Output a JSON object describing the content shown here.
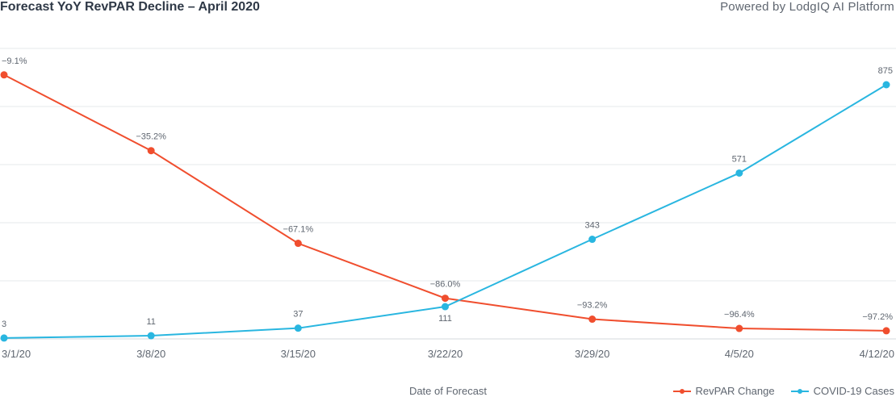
{
  "header": {
    "title": "Forecast YoY RevPAR Decline – April 2020",
    "powered_by": "Powered by LodgIQ AI Platform"
  },
  "chart_data": {
    "type": "line",
    "title": "Forecast YoY RevPAR Decline – April 2020",
    "xlabel": "Date of Forecast",
    "ylabel": "",
    "categories": [
      "3/1/20",
      "3/8/20",
      "3/15/20",
      "3/22/20",
      "3/29/20",
      "4/5/20",
      "4/12/20"
    ],
    "series": [
      {
        "name": "RevPAR Change",
        "color": "#f04e2e",
        "values": [
          -9.1,
          -35.2,
          -67.1,
          -86.0,
          -93.2,
          -96.4,
          -97.2
        ],
        "labels": [
          "−9.1%",
          "−35.2%",
          "−67.1%",
          "−86.0%",
          "−93.2%",
          "−96.4%",
          "−97.2%"
        ],
        "ylim": [
          -100,
          0
        ]
      },
      {
        "name": "COVID-19 Cases",
        "color": "#29b6e0",
        "values": [
          3,
          11,
          37,
          111,
          343,
          571,
          875
        ],
        "labels": [
          "3",
          "11",
          "37",
          "111",
          "343",
          "571",
          "875"
        ],
        "ylim": [
          0,
          1000
        ]
      }
    ],
    "grid": true,
    "legend_position": "bottom-right"
  }
}
